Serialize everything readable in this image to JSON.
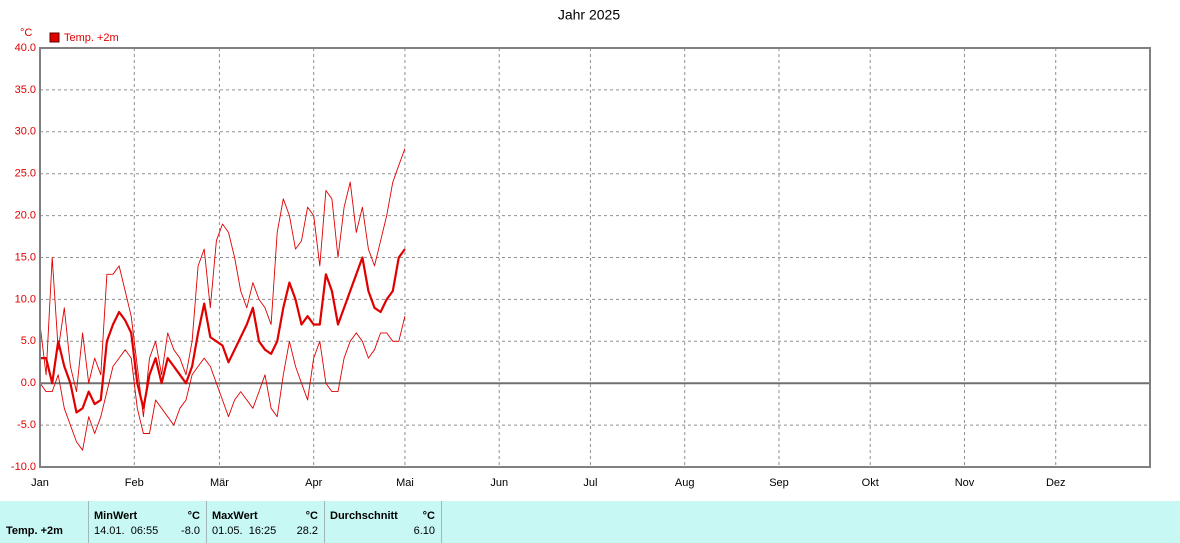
{
  "chart_data": {
    "type": "line",
    "title": "Jahr 2025",
    "y_unit": "°C",
    "x": [
      0,
      2,
      4,
      6,
      8,
      10,
      12,
      14,
      16,
      18,
      20,
      22,
      24,
      26,
      28,
      30,
      32,
      34,
      36,
      38,
      40,
      42,
      44,
      46,
      48,
      50,
      52,
      54,
      56,
      58,
      60,
      62,
      64,
      66,
      68,
      70,
      72,
      74,
      76,
      78,
      80,
      82,
      84,
      86,
      88,
      90,
      92,
      94,
      96,
      98,
      100,
      102,
      104,
      106,
      108,
      110,
      112,
      114,
      116,
      118,
      120
    ],
    "series": [
      {
        "name": "Temp. +2m",
        "color": "#e00000",
        "width": 2.2,
        "values": [
          3,
          3,
          0,
          5,
          2,
          0,
          -3.5,
          -3,
          -1,
          -2.5,
          -2,
          5,
          7,
          8.5,
          7.5,
          6,
          0,
          -3,
          1,
          3,
          0,
          3,
          2,
          1,
          0,
          2,
          6,
          9.5,
          5.5,
          5,
          4.5,
          2.5,
          4,
          5.5,
          7,
          9,
          5,
          4,
          3.5,
          5,
          9,
          12,
          10,
          7,
          8,
          7,
          7,
          13,
          11,
          7,
          9,
          11,
          13,
          15,
          11,
          9,
          8.5,
          10,
          11,
          15,
          16
        ]
      },
      {
        "color": "#e00000",
        "width": 0.9,
        "values": [
          7,
          1,
          15,
          4,
          9,
          2,
          -1,
          6,
          0,
          3,
          1,
          13,
          13,
          14,
          11,
          8,
          2,
          -4,
          3,
          5,
          1,
          6,
          4,
          3,
          1,
          5,
          14,
          16,
          9,
          17,
          19,
          18,
          15,
          11,
          9,
          12,
          10,
          9,
          7,
          18,
          22,
          20,
          16,
          17,
          21,
          20,
          14,
          23,
          22,
          15,
          21,
          24,
          18,
          21,
          16,
          14,
          17,
          20,
          24,
          26,
          28
        ]
      },
      {
        "color": "#e00000",
        "width": 0.9,
        "values": [
          0,
          -1,
          -1,
          1,
          -3,
          -5,
          -7,
          -8,
          -4,
          -6,
          -4,
          -1,
          2,
          3,
          4,
          3,
          -3,
          -6,
          -6,
          -2,
          -3,
          -4,
          -5,
          -3,
          -2,
          1,
          2,
          3,
          2,
          0,
          -2,
          -4,
          -2,
          -1,
          -2,
          -3,
          -1,
          1,
          -3,
          -4,
          1,
          5,
          2,
          0,
          -2,
          3,
          5,
          0,
          -1,
          -1,
          3,
          5,
          6,
          5,
          3,
          4,
          6,
          6,
          5,
          5,
          8
        ]
      }
    ],
    "xlim": [
      0,
      365
    ],
    "xticks": [
      {
        "value": 0,
        "label": "Jan"
      },
      {
        "value": 31,
        "label": "Feb"
      },
      {
        "value": 59,
        "label": "Mär"
      },
      {
        "value": 90,
        "label": "Apr"
      },
      {
        "value": 120,
        "label": "Mai"
      },
      {
        "value": 151,
        "label": "Jun"
      },
      {
        "value": 181,
        "label": "Jul"
      },
      {
        "value": 212,
        "label": "Aug"
      },
      {
        "value": 243,
        "label": "Sep"
      },
      {
        "value": 273,
        "label": "Okt"
      },
      {
        "value": 304,
        "label": "Nov"
      },
      {
        "value": 334,
        "label": "Dez"
      }
    ],
    "ylim": [
      -10,
      40
    ],
    "yticks": [
      {
        "value": -10,
        "label": "-10.0"
      },
      {
        "value": -5,
        "label": "-5.0"
      },
      {
        "value": 0,
        "label": "0.0"
      },
      {
        "value": 5,
        "label": "5.0"
      },
      {
        "value": 10,
        "label": "10.0"
      },
      {
        "value": 15,
        "label": "15.0"
      },
      {
        "value": 20,
        "label": "20.0"
      },
      {
        "value": 25,
        "label": "25.0"
      },
      {
        "value": 30,
        "label": "30.0"
      },
      {
        "value": 35,
        "label": "35.0"
      },
      {
        "value": 40,
        "label": "40.0"
      }
    ],
    "grid": true
  },
  "stats": {
    "row_label": "Temp. +2m",
    "min": {
      "header": "MinWert",
      "unit": "°C",
      "time": "14.01.  06:55",
      "value": "-8.0"
    },
    "max": {
      "header": "MaxWert",
      "unit": "°C",
      "time": "01.05.  16:25",
      "value": "28.2"
    },
    "avg": {
      "header": "Durchschnitt",
      "unit": "°C",
      "value": "6.10"
    }
  }
}
